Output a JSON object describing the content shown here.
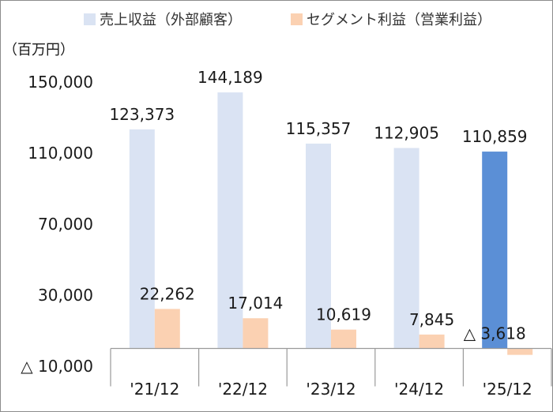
{
  "chart_data": {
    "type": "bar",
    "unit_label": "（百万円）",
    "categories": [
      "'21/12",
      "'22/12",
      "'23/12",
      "'24/12",
      "'25/12"
    ],
    "y_ticks": [
      -10000,
      30000,
      70000,
      110000,
      150000
    ],
    "y_tick_labels": [
      "△ 10,000",
      "30,000",
      "70,000",
      "110,000",
      "150,000"
    ],
    "ylim": [
      -10000,
      150000
    ],
    "legend_position": "top",
    "series": [
      {
        "name": "売上収益（外部顧客）",
        "values": [
          123373,
          144189,
          115357,
          112905,
          110859
        ],
        "labels": [
          "123,373",
          "144,189",
          "115,357",
          "112,905",
          "110,859"
        ],
        "color": "#dae3f3",
        "highlight_color": "#5b8fd6",
        "highlight_index": 4
      },
      {
        "name": "セグメント利益（営業利益）",
        "values": [
          22262,
          17014,
          10619,
          7845,
          -3618
        ],
        "labels": [
          "22,262",
          "17,014",
          "10,619",
          "7,845",
          "△ 3,618"
        ],
        "color": "#fbd1b2"
      }
    ],
    "grid": false
  }
}
